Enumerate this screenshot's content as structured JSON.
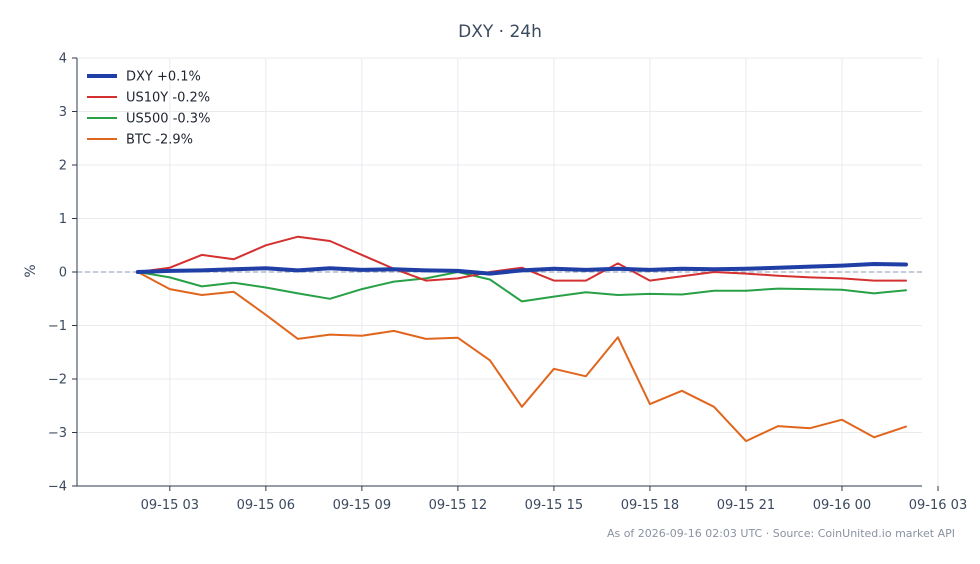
{
  "chart_data": {
    "type": "line",
    "title": "DXY · 24h",
    "ylabel": "%",
    "xlabel": "",
    "ylim": [
      -4,
      4
    ],
    "yticks": [
      -4,
      -3,
      -2,
      -1,
      0,
      1,
      2,
      3,
      4
    ],
    "ytick_labels": [
      "−4",
      "−3",
      "−2",
      "−1",
      "0",
      "1",
      "2",
      "3",
      "4"
    ],
    "xticks": [
      3,
      6,
      9,
      12,
      15,
      18,
      21,
      24,
      27
    ],
    "xtick_labels": [
      "09-15 03",
      "09-15 06",
      "09-15 09",
      "09-15 12",
      "09-15 15",
      "09-15 18",
      "09-15 21",
      "09-16 00",
      "09-16 03"
    ],
    "xlim": [
      0.1,
      26.5
    ],
    "x": [
      2,
      3,
      4,
      5,
      6,
      7,
      8,
      9,
      10,
      11,
      12,
      13,
      14,
      15,
      16,
      17,
      18,
      19,
      20,
      21,
      22,
      23,
      24,
      25,
      26
    ],
    "grid": true,
    "baseline": 0,
    "legend_position": "top-left",
    "series": [
      {
        "name": "DXY +0.1%",
        "color": "#1f3fa6",
        "width": 4,
        "values": [
          0,
          0.02,
          0.03,
          0.05,
          0.07,
          0.03,
          0.07,
          0.04,
          0.05,
          0.03,
          0.02,
          -0.03,
          0.03,
          0.06,
          0.04,
          0.06,
          0.04,
          0.06,
          0.05,
          0.06,
          0.08,
          0.1,
          0.12,
          0.15,
          0.14
        ]
      },
      {
        "name": "US10Y -0.2%",
        "color": "#d43030",
        "width": 2,
        "values": [
          0,
          0.08,
          0.32,
          0.24,
          0.5,
          0.66,
          0.58,
          0.32,
          0.06,
          -0.16,
          -0.12,
          0,
          0.08,
          -0.16,
          -0.16,
          0.16,
          -0.16,
          -0.08,
          0,
          -0.03,
          -0.07,
          -0.1,
          -0.12,
          -0.16,
          -0.16
        ]
      },
      {
        "name": "US500 -0.3%",
        "color": "#27a046",
        "width": 2,
        "values": [
          0,
          -0.1,
          -0.27,
          -0.2,
          -0.29,
          -0.4,
          -0.5,
          -0.32,
          -0.18,
          -0.12,
          0,
          -0.14,
          -0.55,
          -0.46,
          -0.38,
          -0.43,
          -0.41,
          -0.42,
          -0.35,
          -0.35,
          -0.31,
          -0.32,
          -0.33,
          -0.4,
          -0.34
        ]
      },
      {
        "name": "BTC -2.9%",
        "color": "#e0661e",
        "width": 2,
        "values": [
          0,
          -0.32,
          -0.43,
          -0.37,
          -0.8,
          -1.25,
          -1.17,
          -1.19,
          -1.1,
          -1.25,
          -1.23,
          -1.65,
          -2.52,
          -1.81,
          -1.95,
          -1.22,
          -2.47,
          -2.22,
          -2.52,
          -3.16,
          -2.88,
          -2.92,
          -2.76,
          -3.09,
          -2.89
        ]
      }
    ]
  },
  "footer": "As of 2026-09-16 02:03 UTC · Source: CoinUnited.io market API"
}
